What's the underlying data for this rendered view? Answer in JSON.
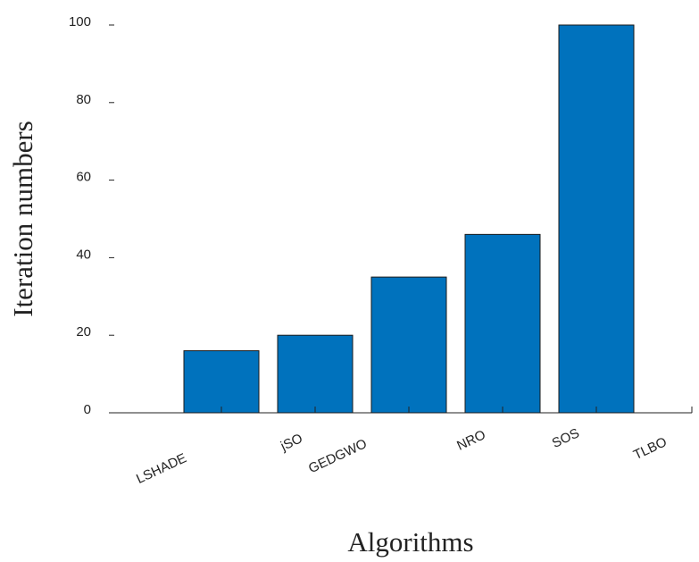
{
  "chart_data": {
    "type": "bar",
    "x_label": "Algorithms",
    "y_label": "Iteration numbers",
    "categories": [
      "LSHADE",
      "jSO",
      "GEDGWO",
      "NRO",
      "SOS",
      "TLBO"
    ],
    "values": [
      16,
      20,
      35,
      46,
      100,
      null
    ],
    "color": "#0072bd",
    "ylim": [
      0,
      100
    ],
    "yticks": [
      0,
      20,
      40,
      60,
      80,
      100
    ]
  }
}
